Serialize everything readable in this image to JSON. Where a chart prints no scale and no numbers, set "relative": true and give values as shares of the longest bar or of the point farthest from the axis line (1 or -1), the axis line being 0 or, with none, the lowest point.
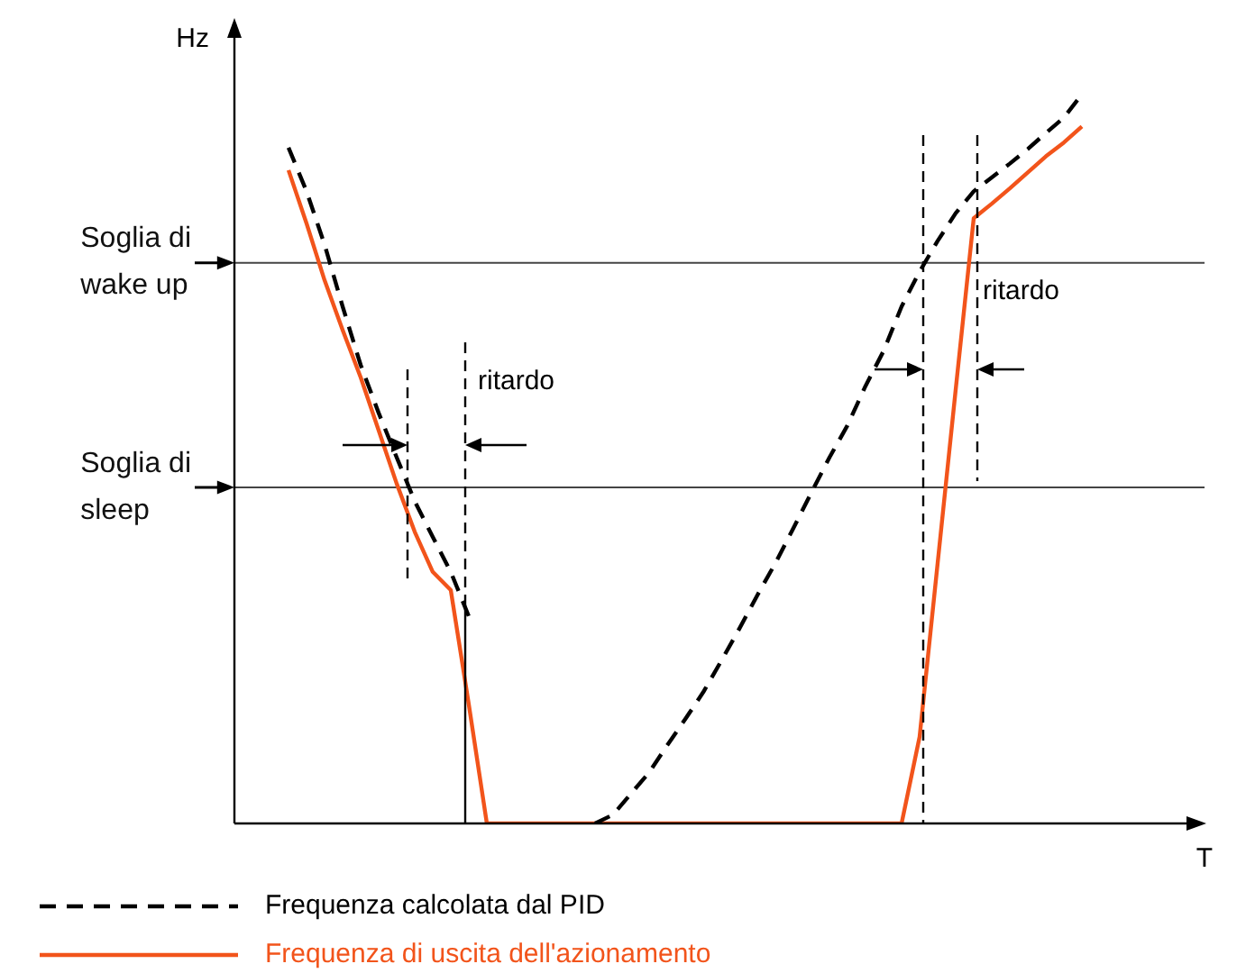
{
  "chart_data": {
    "type": "line",
    "relative": true,
    "xlabel": "T",
    "ylabel": "Hz",
    "legend": "bottom",
    "categories": [
      null,
      null,
      null,
      null,
      null,
      null,
      null,
      null,
      null,
      null,
      null,
      null,
      null,
      null,
      null,
      null,
      null,
      null,
      null,
      null,
      null,
      null,
      null,
      null,
      null,
      null,
      null,
      null,
      null,
      null,
      null,
      null,
      null,
      null,
      null,
      null,
      null,
      null,
      null,
      null,
      null,
      null,
      null,
      null,
      null,
      null,
      null,
      null,
      null,
      null,
      null,
      null,
      null,
      null
    ],
    "series": [
      {
        "name": "Frequenza calcolata dal PID",
        "color": "#000000",
        "line_style": "dashed",
        "values": [
          null,
          null,
          null,
          0.927,
          0.867,
          0.794,
          0.709,
          0.629,
          0.563,
          0.502,
          0.442,
          0.393,
          0.345,
          0.284,
          null,
          null,
          null,
          null,
          null,
          null,
          0,
          0.012,
          0.041,
          0.07,
          0.107,
          0.143,
          0.18,
          0.223,
          0.267,
          0.313,
          0.357,
          0.405,
          0.454,
          0.502,
          0.546,
          0.6,
          0.648,
          0.709,
          0.757,
          0.799,
          0.837,
          0.867,
          0.886,
          0.905,
          0.925,
          0.947,
          0.968,
          1,
          null,
          null,
          null,
          null,
          null,
          null
        ]
      },
      {
        "name": "Frequenza di uscita dell'azionamento",
        "color": "#f2541b",
        "line_style": "solid",
        "values": [
          null,
          null,
          null,
          0.896,
          0.823,
          0.745,
          0.677,
          0.612,
          0.539,
          0.466,
          0.4,
          0.345,
          0.32,
          0.163,
          0,
          0,
          0,
          0,
          0,
          0,
          0,
          0,
          0,
          0,
          0,
          0,
          0,
          0,
          0,
          0,
          0,
          0,
          0,
          0,
          0,
          0,
          0,
          0,
          0.119,
          0.357,
          0.595,
          0.83,
          0.85,
          0.871,
          0.893,
          0.915,
          0.934,
          0.956,
          null,
          null,
          null,
          null,
          null,
          null
        ]
      }
    ],
    "ref_lines": [
      {
        "axis": "y",
        "value": 0.769,
        "label": "Soglia di wake up",
        "color": "#444444"
      },
      {
        "axis": "y",
        "value": 0.461,
        "label": "Soglia di sleep",
        "color": "#444444"
      }
    ],
    "annotations": [
      "ritardo",
      "ritardo"
    ]
  }
}
